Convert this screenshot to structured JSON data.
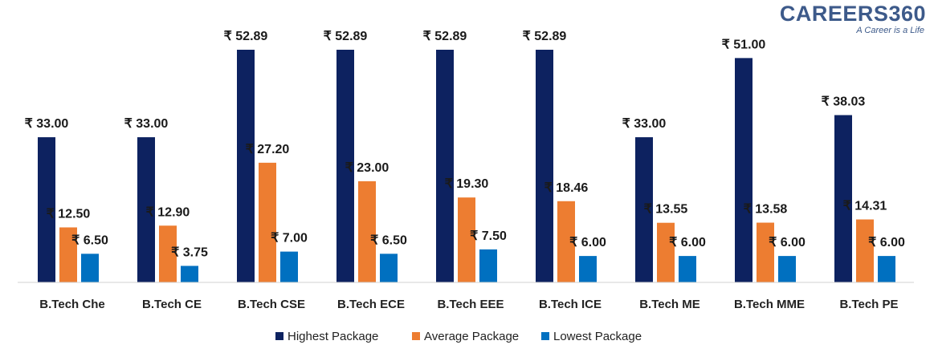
{
  "logo": {
    "name": "CAREERS360",
    "tagline": "A Career is a Life"
  },
  "chart_data": {
    "type": "bar",
    "currency": "₹",
    "categories": [
      "B.Tech Che",
      "B.Tech CE",
      "B.Tech CSE",
      "B.Tech ECE",
      "B.Tech EEE",
      "B.Tech ICE",
      "B.Tech ME",
      "B.Tech MME",
      "B.Tech PE"
    ],
    "series": [
      {
        "name": "Highest Package",
        "color": "#0d2260",
        "values": [
          33.0,
          33.0,
          52.89,
          52.89,
          52.89,
          52.89,
          33.0,
          51.0,
          38.03
        ]
      },
      {
        "name": "Average Package",
        "color": "#ed7d31",
        "values": [
          12.5,
          12.9,
          27.2,
          23.0,
          19.3,
          18.46,
          13.55,
          13.58,
          14.31
        ]
      },
      {
        "name": "Lowest Package",
        "color": "#0070c0",
        "values": [
          6.5,
          3.75,
          7.0,
          6.5,
          7.5,
          6.0,
          6.0,
          6.0,
          6.0
        ]
      }
    ],
    "title": "",
    "xlabel": "",
    "ylabel": "",
    "ylim": [
      0,
      52.89
    ],
    "grid": false,
    "legend": "bottom"
  }
}
